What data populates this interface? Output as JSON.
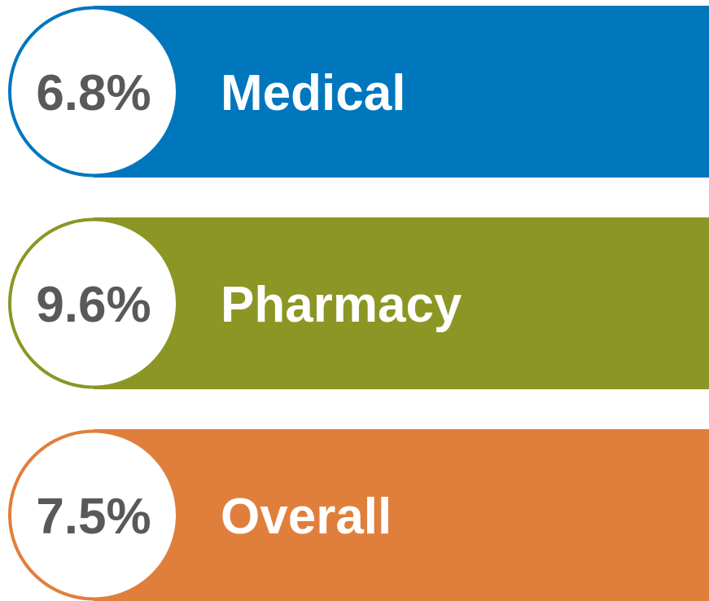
{
  "items": [
    {
      "value": "6.8%",
      "label": "Medical",
      "color": "#0076bd"
    },
    {
      "value": "9.6%",
      "label": "Pharmacy",
      "color": "#8c9624"
    },
    {
      "value": "7.5%",
      "label": "Overall",
      "color": "#e07f3c"
    }
  ]
}
